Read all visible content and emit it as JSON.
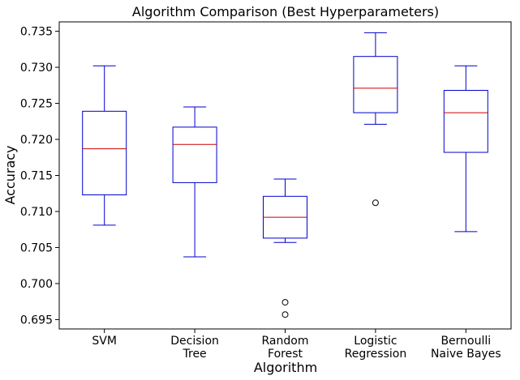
{
  "chart_data": {
    "type": "boxplot",
    "title": "Algorithm Comparison (Best Hyperparameters)",
    "xlabel": "Algorithm",
    "ylabel": "Accuracy",
    "ylim": [
      0.6937,
      0.7363
    ],
    "yticks": [
      0.695,
      0.7,
      0.705,
      0.71,
      0.715,
      0.72,
      0.725,
      0.73,
      0.735
    ],
    "ytick_labels": [
      "0.695",
      "0.700",
      "0.705",
      "0.710",
      "0.715",
      "0.720",
      "0.725",
      "0.730",
      "0.735"
    ],
    "grid": false,
    "colors": {
      "box": "#0000cc",
      "median": "#cc0000",
      "flier": "#000000"
    },
    "categories": [
      {
        "label": [
          "SVM"
        ],
        "whisker_low": 0.7081,
        "q1": 0.7123,
        "median": 0.7187,
        "q3": 0.7239,
        "whisker_high": 0.7302,
        "fliers": []
      },
      {
        "label": [
          "Decision",
          "Tree"
        ],
        "whisker_low": 0.7037,
        "q1": 0.714,
        "median": 0.7193,
        "q3": 0.7217,
        "whisker_high": 0.7245,
        "fliers": []
      },
      {
        "label": [
          "Random",
          "Forest"
        ],
        "whisker_low": 0.7057,
        "q1": 0.7063,
        "median": 0.7092,
        "q3": 0.7121,
        "whisker_high": 0.7145,
        "fliers": [
          0.6974,
          0.6957
        ]
      },
      {
        "label": [
          "Logistic",
          "Regression"
        ],
        "whisker_low": 0.7221,
        "q1": 0.7237,
        "median": 0.7271,
        "q3": 0.7315,
        "whisker_high": 0.7348,
        "fliers": [
          0.7112
        ]
      },
      {
        "label": [
          "Bernoulli",
          "Naive Bayes"
        ],
        "whisker_low": 0.7072,
        "q1": 0.7182,
        "median": 0.7237,
        "q3": 0.7268,
        "whisker_high": 0.7302,
        "fliers": []
      }
    ]
  }
}
